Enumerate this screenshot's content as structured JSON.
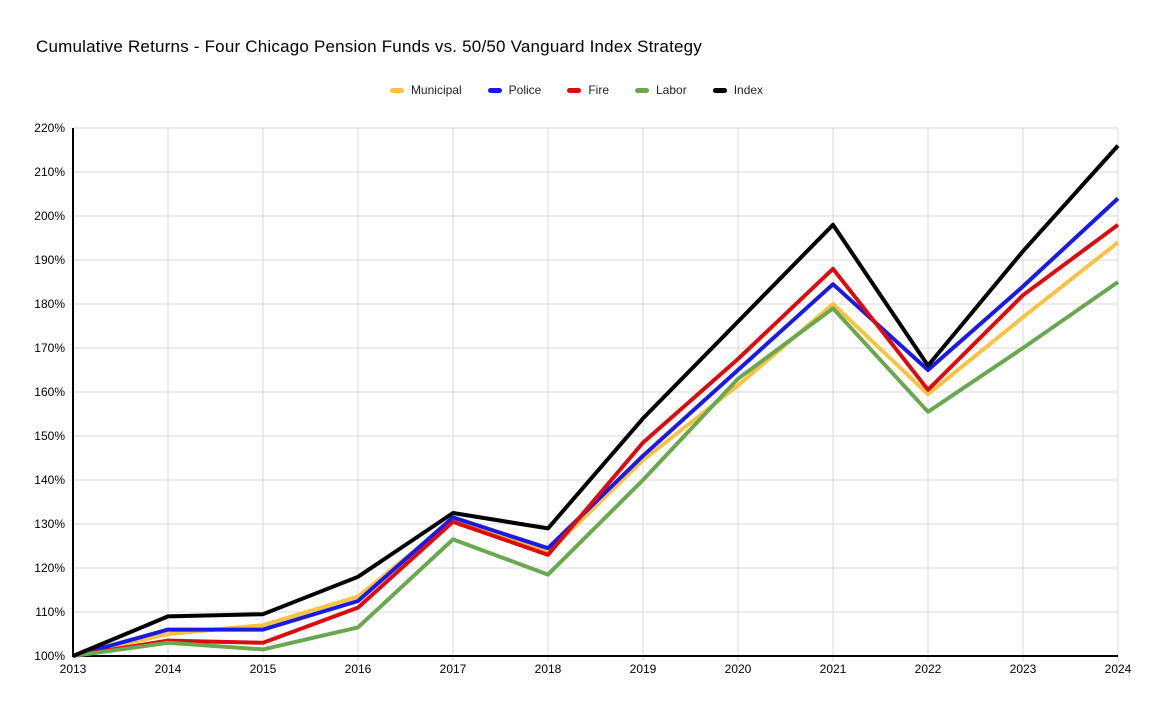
{
  "title": "Cumulative Returns - Four Chicago Pension Funds vs. 50/50 Vanguard Index Strategy",
  "colors": {
    "background": "#ffffff",
    "gridline": "#d9d9d9",
    "axis": "#000000",
    "title_text": "#000000",
    "legend_text": "#222222",
    "axis_label_text": "#000000"
  },
  "chart_data": {
    "type": "line",
    "title": "Cumulative Returns - Four Chicago Pension Funds vs. 50/50 Vanguard Index Strategy",
    "xlabel": "",
    "ylabel": "",
    "x": [
      2013,
      2014,
      2015,
      2016,
      2017,
      2018,
      2019,
      2020,
      2021,
      2022,
      2023,
      2024
    ],
    "x_tick_labels": [
      "2013",
      "2014",
      "2015",
      "2016",
      "2017",
      "2018",
      "2019",
      "2020",
      "2021",
      "2022",
      "2023",
      "2024"
    ],
    "ylim": [
      100,
      220
    ],
    "ytick_step": 10,
    "y_tick_labels": [
      "100%",
      "110%",
      "120%",
      "130%",
      "140%",
      "150%",
      "160%",
      "170%",
      "180%",
      "190%",
      "200%",
      "210%",
      "220%"
    ],
    "grid": true,
    "legend_position": "top",
    "legend_entries": [
      "Municipal",
      "Police",
      "Fire",
      "Labor",
      "Index"
    ],
    "series": [
      {
        "name": "Municipal",
        "color": "#f6c344",
        "values": [
          100,
          105,
          107,
          113.5,
          131,
          123.5,
          144.5,
          161.5,
          180,
          159.5,
          177,
          194
        ]
      },
      {
        "name": "Police",
        "color": "#1a1ae0",
        "values": [
          100,
          106,
          106,
          112.5,
          131.5,
          124.5,
          145.5,
          165,
          184.5,
          165,
          184,
          204
        ]
      },
      {
        "name": "Fire",
        "color": "#d90d0d",
        "values": [
          100,
          103.5,
          103,
          111,
          130.5,
          123,
          148.5,
          167.5,
          188,
          160.5,
          182,
          198
        ]
      },
      {
        "name": "Labor",
        "color": "#6aa84f",
        "values": [
          100,
          103,
          101.5,
          106.5,
          126.5,
          118.5,
          140,
          163,
          179,
          155.5,
          170,
          185
        ]
      },
      {
        "name": "Index",
        "color": "#000000",
        "values": [
          100,
          109,
          109.5,
          118,
          132.5,
          129,
          154,
          176,
          198,
          166,
          192,
          216
        ]
      }
    ]
  }
}
